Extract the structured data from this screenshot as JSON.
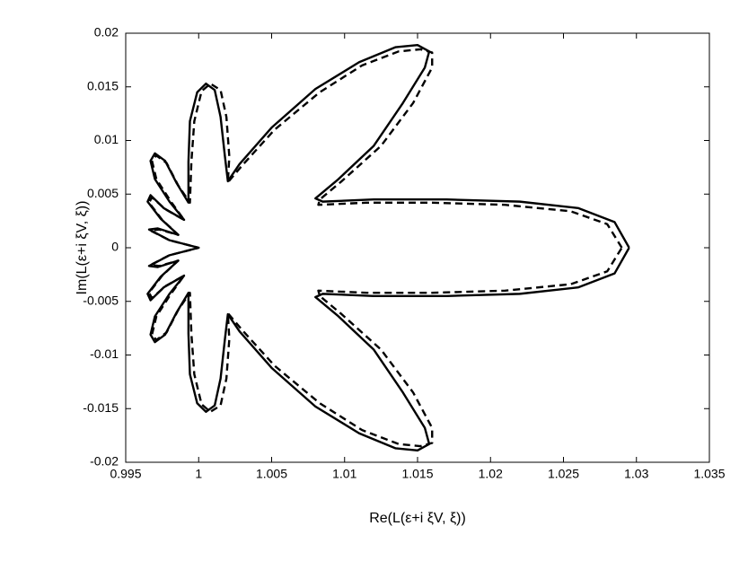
{
  "chart_data": {
    "type": "line",
    "xlabel": "Re(L(ε+i ξV, ξ))",
    "ylabel": "Im(L(ε+i ξV, ξ))",
    "xlim": [
      0.995,
      1.035
    ],
    "ylim": [
      -0.02,
      0.02
    ],
    "xticks": [
      0.995,
      1,
      1.005,
      1.01,
      1.015,
      1.02,
      1.025,
      1.03,
      1.035
    ],
    "yticks": [
      -0.02,
      -0.015,
      -0.01,
      -0.005,
      0,
      0.005,
      0.01,
      0.015,
      0.02
    ],
    "grid": false,
    "series": [
      {
        "color": "#000000",
        "dash": false,
        "x": [
          1.0295,
          1.0285,
          1.026,
          1.022,
          1.017,
          1.012,
          1.0085,
          1.008,
          1.0095,
          1.012,
          1.014,
          1.0155,
          1.0158,
          1.015,
          1.0135,
          1.011,
          1.008,
          1.005,
          1.0028,
          1.002,
          1.0018,
          1.0015,
          1.0011,
          1.0005,
          0.9999,
          0.9994,
          0.9993,
          0.9993,
          0.9985,
          0.9977,
          0.997,
          0.9967,
          0.997,
          0.998,
          0.999,
          0.9976,
          0.9967,
          0.9965,
          0.9974,
          0.9986,
          0.9972,
          0.9966,
          0.998,
          1,
          0.998,
          0.9966,
          0.9972,
          0.9986,
          0.9974,
          0.9965,
          0.9967,
          0.9976,
          0.999,
          0.998,
          0.997,
          0.9967,
          0.997,
          0.9977,
          0.9985,
          0.9993,
          0.9993,
          0.9994,
          0.9999,
          1.0005,
          1.0011,
          1.0015,
          1.0018,
          1.002,
          1.0028,
          1.005,
          1.008,
          1.011,
          1.0135,
          1.015,
          1.0158,
          1.0155,
          1.014,
          1.012,
          1.0095,
          1.008,
          1.0085,
          1.012,
          1.017,
          1.022,
          1.026,
          1.0285,
          1.0295
        ],
        "y": [
          0,
          0.0024,
          0.0037,
          0.0043,
          0.0045,
          0.0045,
          0.0043,
          0.0046,
          0.0063,
          0.0095,
          0.0135,
          0.0168,
          0.0183,
          0.0189,
          0.0187,
          0.0173,
          0.0148,
          0.0112,
          0.0078,
          0.0062,
          0.0085,
          0.0122,
          0.0147,
          0.0153,
          0.0145,
          0.0118,
          0.008,
          0.0042,
          0.006,
          0.0081,
          0.0088,
          0.0081,
          0.0064,
          0.0043,
          0.0026,
          0.0037,
          0.0049,
          0.0043,
          0.0027,
          0.0012,
          0.0018,
          0.0017,
          0.0007,
          0,
          -0.0007,
          -0.0017,
          -0.0018,
          -0.0012,
          -0.0027,
          -0.0043,
          -0.0049,
          -0.0037,
          -0.0026,
          -0.0043,
          -0.0064,
          -0.0081,
          -0.0088,
          -0.0081,
          -0.006,
          -0.0042,
          -0.008,
          -0.0118,
          -0.0145,
          -0.0153,
          -0.0147,
          -0.0122,
          -0.0085,
          -0.0062,
          -0.0078,
          -0.0112,
          -0.0148,
          -0.0173,
          -0.0187,
          -0.0189,
          -0.0183,
          -0.0168,
          -0.0135,
          -0.0095,
          -0.0063,
          -0.0046,
          -0.0043,
          -0.0045,
          -0.0045,
          -0.0043,
          -0.0037,
          -0.0024,
          0
        ]
      },
      {
        "color": "#000000",
        "dash": true,
        "x": [
          1.029,
          1.028,
          1.0255,
          1.021,
          1.016,
          1.0115,
          1.0082,
          1.0083,
          1.0098,
          1.0125,
          1.0147,
          1.016,
          1.016,
          1.0152,
          1.0137,
          1.0112,
          1.0083,
          1.0052,
          1.003,
          1.002,
          1.0021,
          1.0019,
          1.0015,
          1.0008,
          1.0002,
          0.9997,
          0.9995,
          0.9994,
          0.9986,
          0.9978,
          0.9971,
          0.9968,
          0.9971,
          0.9981,
          0.999,
          0.9977,
          0.9968,
          0.9966,
          0.9975,
          0.9986,
          0.9973,
          0.9967,
          0.998,
          1,
          0.998,
          0.9967,
          0.9973,
          0.9986,
          0.9975,
          0.9966,
          0.9968,
          0.9977,
          0.999,
          0.9981,
          0.9971,
          0.9968,
          0.9971,
          0.9978,
          0.9986,
          0.9994,
          0.9995,
          0.9997,
          1.0002,
          1.0008,
          1.0015,
          1.0019,
          1.0021,
          1.002,
          1.003,
          1.0052,
          1.0083,
          1.0112,
          1.0137,
          1.0152,
          1.016,
          1.016,
          1.0147,
          1.0125,
          1.0098,
          1.0083,
          1.0082,
          1.0115,
          1.016,
          1.021,
          1.0255,
          1.028,
          1.029
        ],
        "y": [
          0,
          0.0022,
          0.0034,
          0.004,
          0.0042,
          0.0042,
          0.004,
          0.0045,
          0.0062,
          0.0095,
          0.0135,
          0.0168,
          0.0182,
          0.0185,
          0.0183,
          0.017,
          0.0145,
          0.011,
          0.0077,
          0.0061,
          0.0085,
          0.0122,
          0.0147,
          0.0153,
          0.0146,
          0.0118,
          0.008,
          0.0042,
          0.0058,
          0.0079,
          0.0086,
          0.0081,
          0.0064,
          0.0043,
          0.0026,
          0.0036,
          0.0047,
          0.0042,
          0.0026,
          0.0012,
          0.0017,
          0.0016,
          0.0007,
          0,
          -0.0007,
          -0.0016,
          -0.0017,
          -0.0012,
          -0.0026,
          -0.0042,
          -0.0047,
          -0.0036,
          -0.0026,
          -0.0043,
          -0.0064,
          -0.0081,
          -0.0086,
          -0.0079,
          -0.0058,
          -0.0042,
          -0.008,
          -0.0118,
          -0.0146,
          -0.0153,
          -0.0147,
          -0.0122,
          -0.0085,
          -0.0061,
          -0.0077,
          -0.011,
          -0.0145,
          -0.017,
          -0.0183,
          -0.0185,
          -0.0182,
          -0.0168,
          -0.0135,
          -0.0095,
          -0.0062,
          -0.0045,
          -0.004,
          -0.0042,
          -0.0042,
          -0.004,
          -0.0034,
          -0.0022,
          0
        ]
      }
    ]
  }
}
